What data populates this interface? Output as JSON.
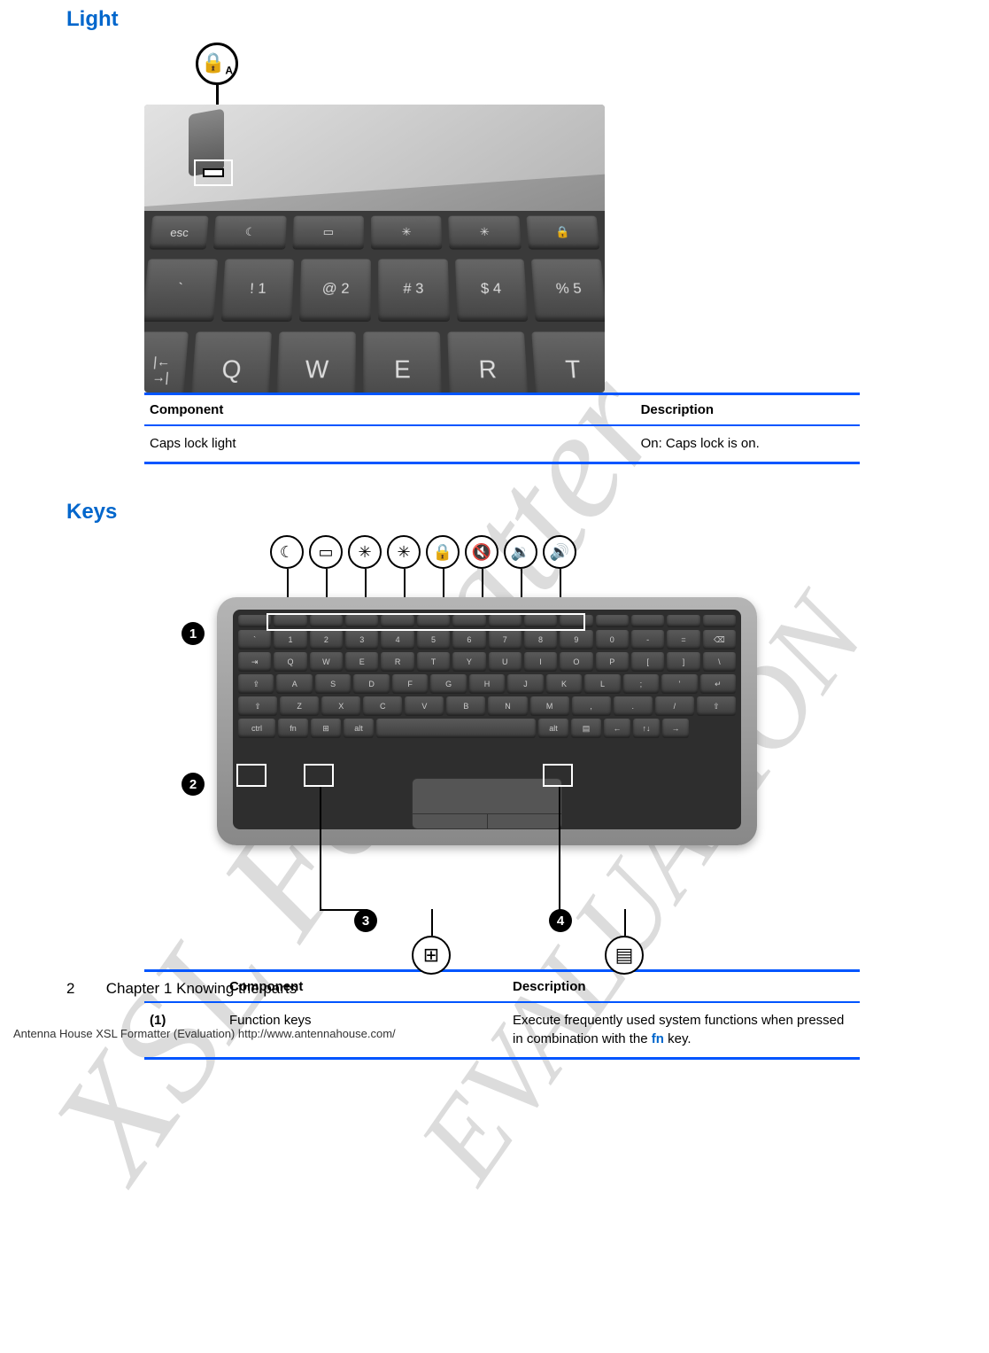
{
  "watermark": {
    "text1": "XSL Formatter",
    "text2": "EVALUATION",
    "color": "#dcdcdc",
    "fontsize_large": 180,
    "fontsize_small": 140
  },
  "sections": {
    "light": {
      "heading": "Light",
      "table": {
        "headers": {
          "component": "Component",
          "description": "Description"
        },
        "rows": [
          {
            "idx": "",
            "component": "Caps lock light",
            "description": "On: Caps lock is on."
          }
        ]
      },
      "figure": {
        "callout_label": "A",
        "keys_r1": [
          "esc",
          "",
          "",
          "",
          "",
          ""
        ],
        "keys_r2": [
          "`",
          "!  1",
          "@  2",
          "#  3",
          "$  4",
          "%  5"
        ],
        "keys_r3": [
          "tab",
          "Q",
          "W",
          "E",
          "R",
          "T"
        ]
      }
    },
    "keys": {
      "heading": "Keys",
      "table": {
        "headers": {
          "component": "Component",
          "description": "Description"
        },
        "rows": [
          {
            "idx": "(1)",
            "component": "Function keys",
            "description_pre": "Execute frequently used system functions when pressed in combination with the ",
            "description_link": "fn",
            "description_post": " key."
          }
        ]
      },
      "figure": {
        "top_icons": [
          "☾",
          "▭",
          "✳",
          "✳",
          "🔒",
          "🔇",
          "🔉",
          "🔊"
        ],
        "callout_numbers": [
          "1",
          "2",
          "3",
          "4"
        ],
        "bottom_icon_3": "⊞",
        "bottom_icon_4": "▤",
        "rows": {
          "fn": [
            "",
            "",
            "",
            "",
            "",
            "",
            "",
            "",
            "",
            "",
            "",
            "",
            "",
            ""
          ],
          "num": [
            "`",
            "1",
            "2",
            "3",
            "4",
            "5",
            "6",
            "7",
            "8",
            "9",
            "0",
            "-",
            "=",
            "⌫"
          ],
          "q": [
            "⇥",
            "Q",
            "W",
            "E",
            "R",
            "T",
            "Y",
            "U",
            "I",
            "O",
            "P",
            "[",
            "]",
            "\\"
          ],
          "a": [
            "⇪",
            "A",
            "S",
            "D",
            "F",
            "G",
            "H",
            "J",
            "K",
            "L",
            ";",
            "'",
            "↵"
          ],
          "z": [
            "⇧",
            "Z",
            "X",
            "C",
            "V",
            "B",
            "N",
            "M",
            ",",
            ".",
            "/",
            "⇧"
          ],
          "sp": [
            "ctrl",
            "fn",
            "⊞",
            "alt",
            " ",
            "alt",
            "▤",
            "←",
            "↑↓",
            "→"
          ]
        }
      }
    }
  },
  "colors": {
    "heading": "#0066cc",
    "table_border": "#0055ff",
    "link": "#0066cc",
    "background": "#ffffff",
    "text": "#000000"
  },
  "footer": {
    "page_number": "2",
    "chapter": "Chapter 1   Knowing the parts",
    "eval": "Antenna House XSL Formatter (Evaluation)  http://www.antennahouse.com/"
  }
}
